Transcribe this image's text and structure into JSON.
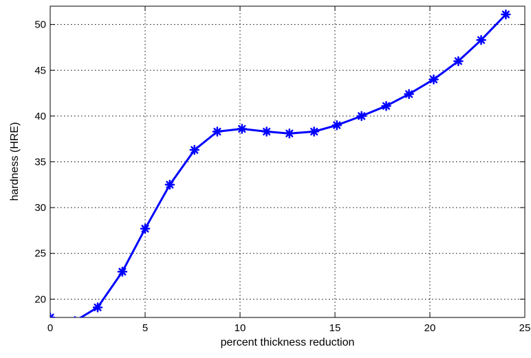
{
  "chart_data": {
    "type": "line",
    "xlabel": "percent thickness reduction",
    "ylabel": "hardness (HRE)",
    "xlim": [
      0,
      25
    ],
    "ylim": [
      18,
      52
    ],
    "xticks": [
      0,
      5,
      10,
      15,
      20,
      25
    ],
    "yticks": [
      20,
      25,
      30,
      35,
      40,
      45,
      50
    ],
    "grid": true,
    "marker": "asterisk",
    "line_color": "#0000ff",
    "series": [
      {
        "x": [
          0,
          1.3,
          2.5,
          3.8,
          5.0,
          6.3,
          7.6,
          8.8,
          10.1,
          11.4,
          12.6,
          13.9,
          15.1,
          16.4,
          17.7,
          18.9,
          20.2,
          21.5,
          22.7,
          24.0
        ],
        "y": [
          18.0,
          17.6,
          19.1,
          23.0,
          27.7,
          32.5,
          36.3,
          38.3,
          38.6,
          38.3,
          38.1,
          38.3,
          39.0,
          40.0,
          41.1,
          42.4,
          44.0,
          46.0,
          48.3,
          51.1
        ]
      }
    ]
  }
}
